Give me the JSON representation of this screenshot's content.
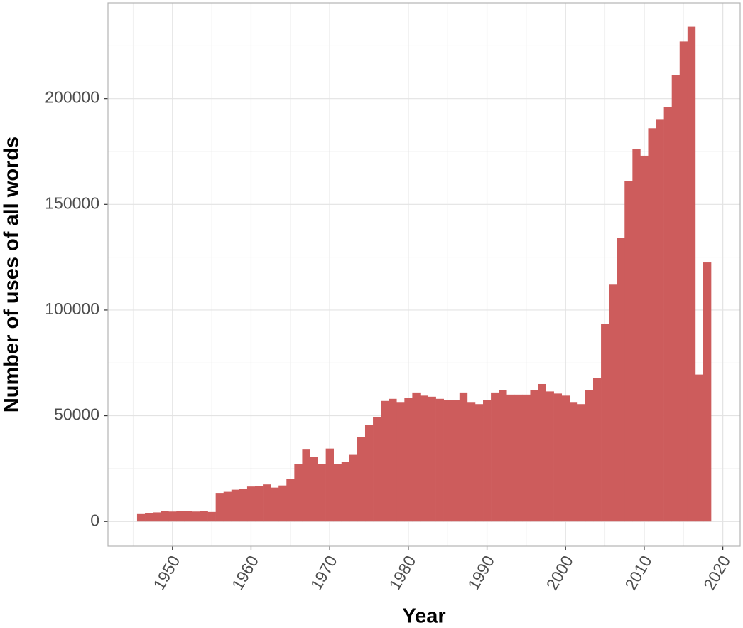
{
  "chart_data": {
    "type": "bar",
    "x_label": "Year",
    "y_label": "Number of uses of all words",
    "x": [
      1946,
      1947,
      1948,
      1949,
      1950,
      1951,
      1952,
      1953,
      1954,
      1955,
      1956,
      1957,
      1958,
      1959,
      1960,
      1961,
      1962,
      1963,
      1964,
      1965,
      1966,
      1967,
      1968,
      1969,
      1970,
      1971,
      1972,
      1973,
      1974,
      1975,
      1976,
      1977,
      1978,
      1979,
      1980,
      1981,
      1982,
      1983,
      1984,
      1985,
      1986,
      1987,
      1988,
      1989,
      1990,
      1991,
      1992,
      1993,
      1994,
      1995,
      1996,
      1997,
      1998,
      1999,
      2000,
      2001,
      2002,
      2003,
      2004,
      2005,
      2006,
      2007,
      2008,
      2009,
      2010,
      2011,
      2012,
      2013,
      2014,
      2015,
      2016,
      2017,
      2018
    ],
    "values": [
      3500,
      4000,
      4300,
      5000,
      4700,
      5000,
      4800,
      4700,
      5000,
      4500,
      13500,
      14000,
      15000,
      15500,
      16500,
      16700,
      17500,
      16000,
      17000,
      20000,
      27000,
      34000,
      30500,
      27000,
      34500,
      27000,
      28000,
      31500,
      40000,
      45500,
      49500,
      57000,
      58000,
      56500,
      58500,
      61000,
      59500,
      59000,
      58000,
      57500,
      57500,
      61000,
      56500,
      55500,
      57500,
      61000,
      62000,
      60000,
      60000,
      60000,
      62000,
      65000,
      61500,
      60500,
      59500,
      56500,
      55500,
      62000,
      68000,
      93500,
      112000,
      134000,
      161000,
      176000,
      173000,
      186000,
      190000,
      196000,
      211000,
      227000,
      234000,
      69500,
      122500
    ],
    "color": "#cd5c5c",
    "xlim": [
      1941.8,
      2022.2
    ],
    "xticks": [
      1950,
      1960,
      1970,
      1980,
      1990,
      2000,
      2010,
      2020
    ],
    "ylim": [
      -11700,
      245300
    ],
    "yticks": [
      0,
      50000,
      100000,
      150000,
      200000
    ],
    "grid": true
  }
}
